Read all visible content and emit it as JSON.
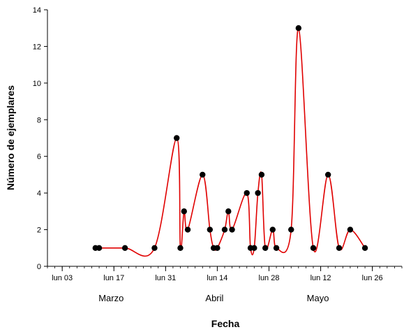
{
  "chart_data": {
    "type": "line",
    "xlabel": "Fecha",
    "ylabel": "Número de ejemplares",
    "ylim": [
      0,
      14
    ],
    "yticks": [
      0,
      2,
      4,
      6,
      8,
      10,
      12,
      14
    ],
    "xlim": [
      "2008-02-28",
      "2008-06-03"
    ],
    "xticks": [
      {
        "date": "2008-03-03",
        "label": "lun 03"
      },
      {
        "date": "2008-03-17",
        "label": "lun 17"
      },
      {
        "date": "2008-03-31",
        "label": "lun 31"
      },
      {
        "date": "2008-04-14",
        "label": "lun 14"
      },
      {
        "date": "2008-04-28",
        "label": "lun 28"
      },
      {
        "date": "2008-05-12",
        "label": "lun 12"
      },
      {
        "date": "2008-05-26",
        "label": "lun 26"
      }
    ],
    "months": [
      {
        "date": "2008-03-17",
        "label": "Marzo"
      },
      {
        "date": "2008-04-14",
        "label": "Abril"
      },
      {
        "date": "2008-05-12",
        "label": "Mayo"
      }
    ],
    "grid": false,
    "series": [
      {
        "marker_color": "#000000",
        "line_color": "#e00000",
        "points": [
          {
            "x": "2008-03-12",
            "y": 1
          },
          {
            "x": "2008-03-13",
            "y": 1
          },
          {
            "x": "2008-03-20",
            "y": 1
          },
          {
            "x": "2008-03-28",
            "y": 1
          },
          {
            "x": "2008-04-03",
            "y": 7
          },
          {
            "x": "2008-04-04",
            "y": 1
          },
          {
            "x": "2008-04-05",
            "y": 3
          },
          {
            "x": "2008-04-06",
            "y": 2
          },
          {
            "x": "2008-04-10",
            "y": 5
          },
          {
            "x": "2008-04-12",
            "y": 2
          },
          {
            "x": "2008-04-13",
            "y": 1
          },
          {
            "x": "2008-04-14",
            "y": 1
          },
          {
            "x": "2008-04-16",
            "y": 2
          },
          {
            "x": "2008-04-17",
            "y": 3
          },
          {
            "x": "2008-04-18",
            "y": 2
          },
          {
            "x": "2008-04-22",
            "y": 4
          },
          {
            "x": "2008-04-23",
            "y": 1
          },
          {
            "x": "2008-04-24",
            "y": 1
          },
          {
            "x": "2008-04-25",
            "y": 4
          },
          {
            "x": "2008-04-26",
            "y": 5
          },
          {
            "x": "2008-04-27",
            "y": 1
          },
          {
            "x": "2008-04-29",
            "y": 2
          },
          {
            "x": "2008-04-30",
            "y": 1
          },
          {
            "x": "2008-05-04",
            "y": 2
          },
          {
            "x": "2008-05-06",
            "y": 13
          },
          {
            "x": "2008-05-10",
            "y": 1
          },
          {
            "x": "2008-05-14",
            "y": 5
          },
          {
            "x": "2008-05-17",
            "y": 1
          },
          {
            "x": "2008-05-20",
            "y": 2
          },
          {
            "x": "2008-05-24",
            "y": 1
          }
        ]
      }
    ]
  }
}
